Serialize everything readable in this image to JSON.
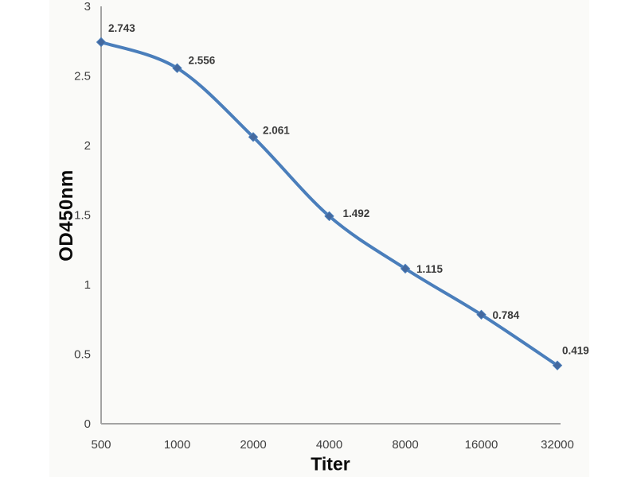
{
  "page": {
    "background_color": "#ffffff",
    "photo_background_color": "#fafaf8"
  },
  "chart_data": {
    "type": "line",
    "title": "",
    "xlabel": "Titer",
    "ylabel": "OD450nm",
    "categories": [
      "500",
      "1000",
      "2000",
      "4000",
      "8000",
      "16000",
      "32000"
    ],
    "series": [
      {
        "name": "OD450nm",
        "values": [
          2.743,
          2.556,
          2.061,
          1.492,
          1.115,
          0.784,
          0.419
        ]
      }
    ],
    "data_labels": [
      "2.743",
      "2.556",
      "2.061",
      "1.492",
      "1.115",
      "0.784",
      "0.419"
    ],
    "y_ticks": [
      "3",
      "2.5",
      "2",
      "1.5",
      "1",
      "0.5",
      "0"
    ],
    "y_tick_values": [
      3,
      2.5,
      2,
      1.5,
      1,
      0.5,
      0
    ],
    "ylim": [
      0,
      3
    ],
    "grid": false,
    "legend_position": "none",
    "smooth_line": true,
    "marker_shape": "diamond",
    "line_color": "#4a7ebb",
    "marker_color": "#44699f",
    "axis_color": "#a3a3a3",
    "tick_label_color": "#3f3f3f",
    "data_label_color": "#3a3a3a"
  }
}
